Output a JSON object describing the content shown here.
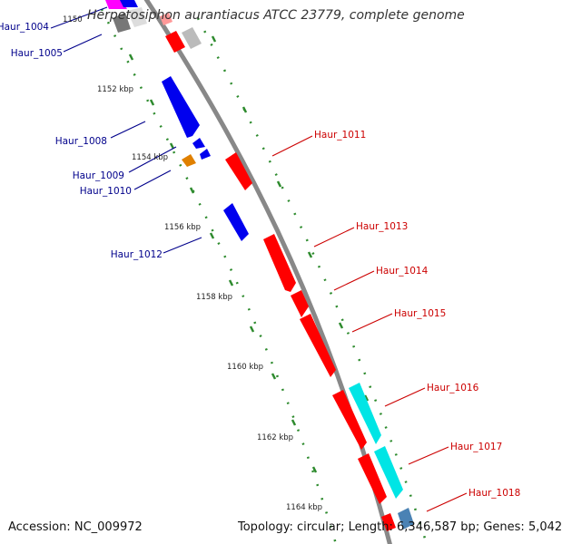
{
  "title": "Herpetosiphon aurantiacus ATCC 23779, complete genome",
  "footer": {
    "accession_label": "Accession:",
    "accession": "NC_009972",
    "topology_label": "Topology:",
    "topology": "circular",
    "length_label": "Length:",
    "length": "6,346,587 bp",
    "genes_label": "Genes:",
    "genes": "5,042"
  },
  "colors": {
    "backbone": "#888888",
    "tick": "#2e8b2e",
    "forward_cds": "#ff0000",
    "reverse_cds": "#0000ee",
    "cyan_feature": "#00e5e5",
    "orange_feature": "#e08000",
    "steel_feature": "#4a82b4",
    "gray_feature": "#bbbbbb",
    "magenta_feature": "#ff00ff",
    "label_forward": "#cc0000",
    "label_reverse": "#00008b"
  },
  "chart_data": {
    "type": "genome_map",
    "position_unit": "kbp",
    "ticks": [
      {
        "label": "1150",
        "kbp": 1150
      },
      {
        "label": "1152 kbp",
        "kbp": 1152
      },
      {
        "label": "1154 kbp",
        "kbp": 1154
      },
      {
        "label": "1156 kbp",
        "kbp": 1156
      },
      {
        "label": "1158 kbp",
        "kbp": 1158
      },
      {
        "label": "1160 kbp",
        "kbp": 1160
      },
      {
        "label": "1162 kbp",
        "kbp": 1162
      },
      {
        "label": "1164 kbp",
        "kbp": 1164
      }
    ],
    "labels": [
      {
        "text": "Haur_1004",
        "strand": "reverse"
      },
      {
        "text": "Haur_1005",
        "strand": "reverse"
      },
      {
        "text": "Haur_1008",
        "strand": "reverse"
      },
      {
        "text": "Haur_1009",
        "strand": "reverse"
      },
      {
        "text": "Haur_1010",
        "strand": "reverse"
      },
      {
        "text": "Haur_1012",
        "strand": "reverse"
      },
      {
        "text": "Haur_1011",
        "strand": "forward"
      },
      {
        "text": "Haur_1013",
        "strand": "forward"
      },
      {
        "text": "Haur_1014",
        "strand": "forward"
      },
      {
        "text": "Haur_1015",
        "strand": "forward"
      },
      {
        "text": "Haur_1016",
        "strand": "forward"
      },
      {
        "text": "Haur_1017",
        "strand": "forward"
      },
      {
        "text": "Haur_1018",
        "strand": "forward"
      }
    ]
  }
}
